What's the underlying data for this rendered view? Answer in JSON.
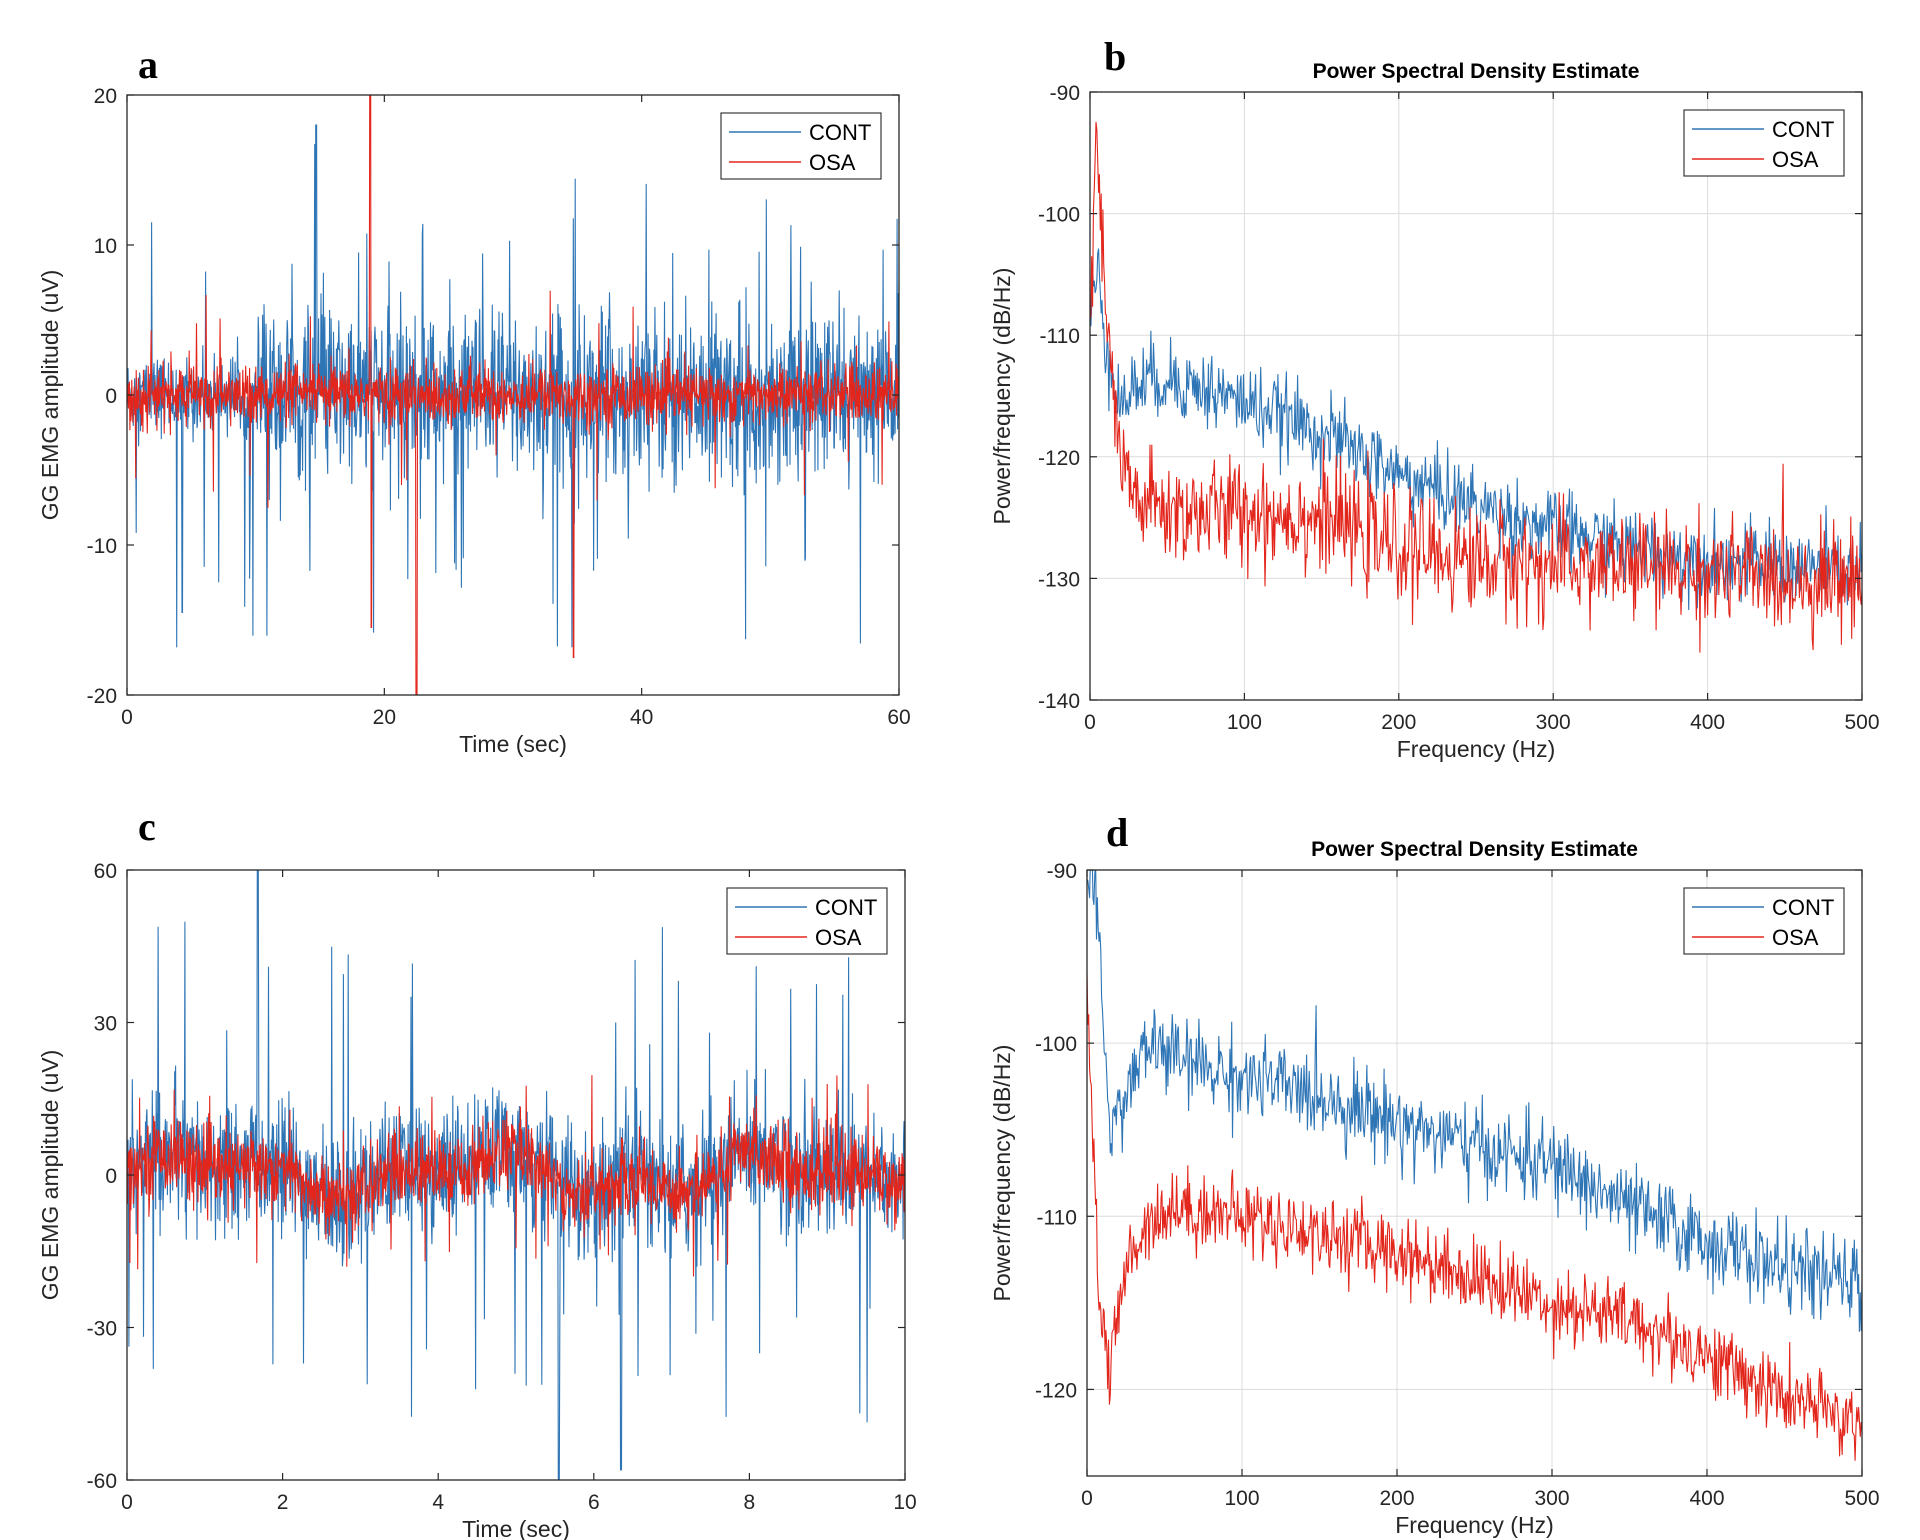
{
  "colors": {
    "cont": "#2e75b6",
    "osa": "#e3261c",
    "grid": "#dcdcdc",
    "axis": "#262626"
  },
  "chart_data": [
    {
      "panel": "a",
      "type": "line",
      "title": "",
      "xlabel": "Time (sec)",
      "ylabel": "GG EMG amplitude (uV)",
      "xlim": [
        0,
        60
      ],
      "ylim": [
        -20,
        20
      ],
      "xticks": [
        0,
        20,
        40,
        60
      ],
      "yticks": [
        -20,
        -10,
        0,
        10,
        20
      ],
      "grid": false,
      "legend": "top-right",
      "series": [
        {
          "name": "CONT",
          "description": "EMG signal, baseline 0, envelope ~±3.5 uV before 10 s, ~±8 uV after, peaks near 18 uV and -14.5 uV"
        },
        {
          "name": "OSA",
          "description": "EMG signal, baseline 0, envelope ~±2.5 uV, spikes to 20 at ~19 s, -22 at ~22.5 s, -17.5 at ~34.7 s"
        }
      ]
    },
    {
      "panel": "b",
      "type": "line",
      "title": "Power Spectral Density Estimate",
      "xlabel": "Frequency (Hz)",
      "ylabel": "Power/frequency (dB/Hz)",
      "xlim": [
        0,
        500
      ],
      "ylim": [
        -140,
        -90
      ],
      "xticks": [
        0,
        100,
        200,
        300,
        400,
        500
      ],
      "yticks": [
        -140,
        -130,
        -120,
        -110,
        -100,
        -90
      ],
      "grid": true,
      "legend": "top-right",
      "series": [
        {
          "name": "CONT",
          "x": [
            0,
            5,
            10,
            20,
            30,
            50,
            100,
            150,
            200,
            250,
            300,
            350,
            400,
            450,
            500
          ],
          "y": [
            -108,
            -105,
            -110,
            -116,
            -114,
            -113.5,
            -115.5,
            -118,
            -121.5,
            -124,
            -126,
            -127.5,
            -128.5,
            -129,
            -129.5
          ]
        },
        {
          "name": "OSA",
          "x": [
            0,
            4,
            10,
            20,
            30,
            50,
            100,
            150,
            200,
            250,
            300,
            350,
            400,
            450,
            500
          ],
          "y": [
            -110,
            -94,
            -108,
            -121,
            -123.5,
            -124.5,
            -124.5,
            -125,
            -127.5,
            -128.5,
            -129,
            -129,
            -129.5,
            -130,
            -130
          ]
        }
      ]
    },
    {
      "panel": "c",
      "type": "line",
      "title": "",
      "xlabel": "Time (sec)",
      "ylabel": "GG EMG amplitude (uV)",
      "xlim": [
        0,
        10
      ],
      "ylim": [
        -60,
        60
      ],
      "xticks": [
        0,
        2,
        4,
        6,
        8,
        10
      ],
      "yticks": [
        -60,
        -30,
        0,
        30,
        60
      ],
      "grid": false,
      "legend": "top-right",
      "series": [
        {
          "name": "CONT",
          "description": "EMG signal, envelope ~±15 uV, peaks near 60 at ~1.7 s and -60 at ~5.5 s"
        },
        {
          "name": "OSA",
          "description": "EMG signal, envelope ~±8 uV with slow wander, peaks near ±20 uV"
        }
      ]
    },
    {
      "panel": "d",
      "type": "line",
      "title": "Power Spectral Density Estimate",
      "xlabel": "Frequency (Hz)",
      "ylabel": "Power/frequency (dB/Hz)",
      "xlim": [
        0,
        500
      ],
      "ylim": [
        -125,
        -90
      ],
      "xticks": [
        0,
        100,
        200,
        300,
        400,
        500
      ],
      "yticks": [
        -120,
        -110,
        -100,
        -90
      ],
      "grid": true,
      "legend": "top-right",
      "series": [
        {
          "name": "CONT",
          "x": [
            0,
            3,
            8,
            15,
            25,
            40,
            60,
            100,
            150,
            200,
            250,
            300,
            350,
            400,
            450,
            500
          ],
          "y": [
            -91,
            -90,
            -95,
            -105,
            -103,
            -100,
            -101,
            -102,
            -103,
            -104.5,
            -106,
            -107,
            -109.5,
            -111.5,
            -113,
            -114
          ]
        },
        {
          "name": "OSA",
          "x": [
            0,
            3,
            8,
            15,
            25,
            40,
            60,
            100,
            150,
            200,
            250,
            300,
            350,
            400,
            450,
            500
          ],
          "y": [
            -97,
            -103,
            -115,
            -119,
            -113,
            -110,
            -109.5,
            -110,
            -111,
            -112,
            -113.5,
            -115,
            -116,
            -118,
            -120.5,
            -122
          ]
        }
      ]
    }
  ],
  "legend": {
    "cont_label": "CONT",
    "osa_label": "OSA"
  },
  "panels": {
    "a": {
      "letter": "a"
    },
    "b": {
      "letter": "b"
    },
    "c": {
      "letter": "c"
    },
    "d": {
      "letter": "d"
    }
  }
}
